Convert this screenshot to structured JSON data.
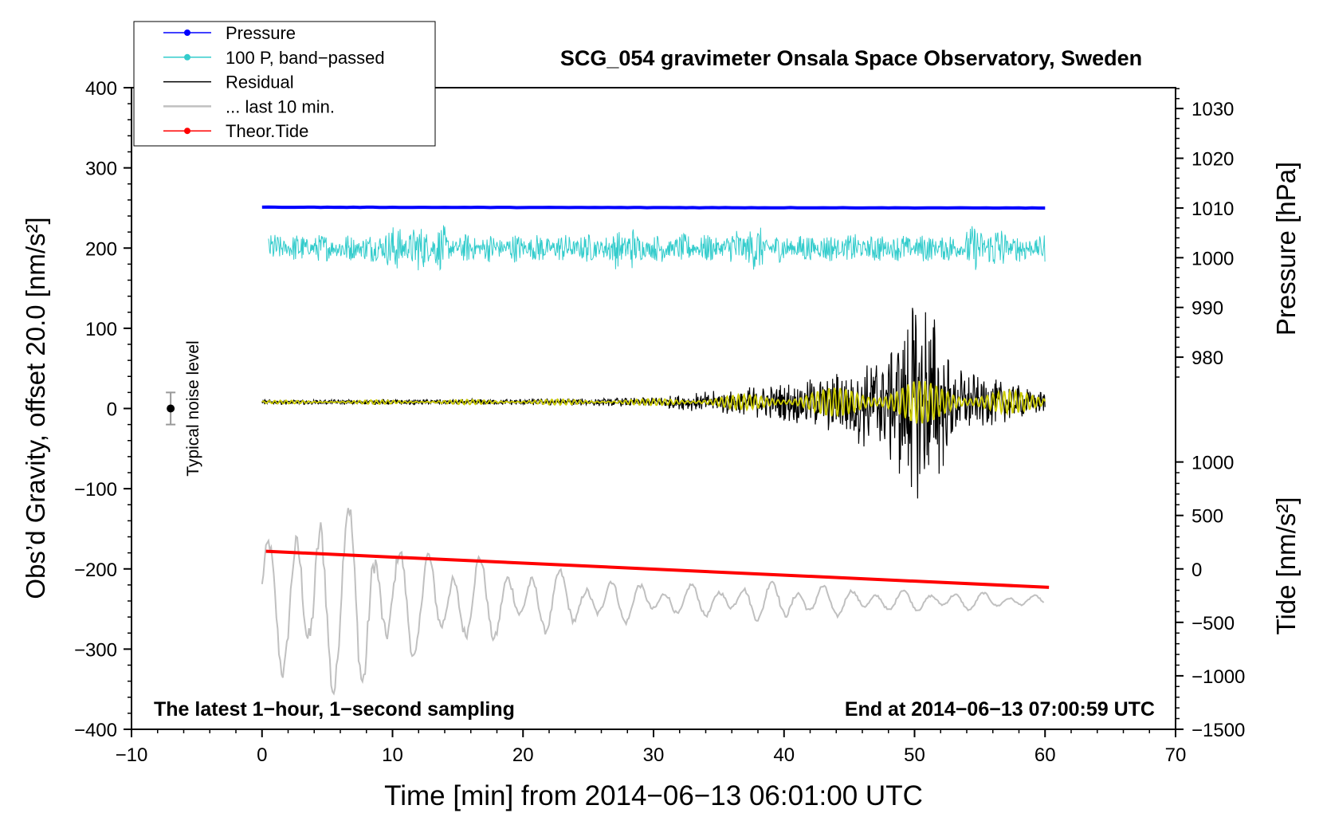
{
  "chart_data": {
    "type": "line",
    "title": "SCG_054 gravimeter Onsala Space Observatory, Sweden",
    "xlabel": "Time [min] from 2014−06−13 06:01:00 UTC",
    "ylabel_left": "Obs’d Gravity, offset 20.0 [nm/s²]",
    "ylabel_pressure": "Pressure [hPa]",
    "ylabel_tide": "Tide [nm/s²]",
    "xlim": [
      -10,
      70
    ],
    "ylim": [
      -400,
      400
    ],
    "x_ticks": [
      {
        "value": -10,
        "label": "−10"
      },
      {
        "value": 0,
        "label": "0"
      },
      {
        "value": 10,
        "label": "10"
      },
      {
        "value": 20,
        "label": "20"
      },
      {
        "value": 30,
        "label": "30"
      },
      {
        "value": 40,
        "label": "40"
      },
      {
        "value": 50,
        "label": "50"
      },
      {
        "value": 60,
        "label": "60"
      },
      {
        "value": 70,
        "label": "70"
      }
    ],
    "y_ticks": [
      {
        "value": 400,
        "label": "400"
      },
      {
        "value": 300,
        "label": "300"
      },
      {
        "value": 200,
        "label": "200"
      },
      {
        "value": 100,
        "label": "100"
      },
      {
        "value": 0,
        "label": "0"
      },
      {
        "value": -100,
        "label": "−100"
      },
      {
        "value": -200,
        "label": "−200"
      },
      {
        "value": -300,
        "label": "−300"
      },
      {
        "value": -400,
        "label": "−400"
      }
    ],
    "pressure_axis": {
      "ref_value": 1010,
      "ref_y": 250,
      "scale_per_hpa": 6.2,
      "ticks": [
        {
          "value": 980,
          "label": "980"
        },
        {
          "value": 990,
          "label": "990"
        },
        {
          "value": 1000,
          "label": "1000"
        },
        {
          "value": 1010,
          "label": "1010"
        },
        {
          "value": 1020,
          "label": "1020"
        },
        {
          "value": 1030,
          "label": "1030"
        }
      ]
    },
    "tide_axis": {
      "ref_value": 0,
      "ref_y": -200,
      "scale_per_unit": 0.1333,
      "ticks": [
        {
          "value": 1000,
          "label": "1000"
        },
        {
          "value": 500,
          "label": "500"
        },
        {
          "value": 0,
          "label": "0"
        },
        {
          "value": -500,
          "label": "−500"
        },
        {
          "value": -1000,
          "label": "−1000"
        },
        {
          "value": -1500,
          "label": "−1500"
        }
      ]
    },
    "legend": {
      "position": "top-left",
      "entries": [
        {
          "label": "Pressure",
          "color": "#0000ff",
          "marker": true
        },
        {
          "label": "100 P, band−passed",
          "color": "#33cccc",
          "marker": true
        },
        {
          "label": "Residual",
          "color": "#000000",
          "marker": false
        },
        {
          "label": "... last 10 min.",
          "color": "#c0c0c0",
          "marker": false
        },
        {
          "label": "Theor.Tide",
          "color": "#ff0000",
          "marker": true
        }
      ]
    },
    "series": [
      {
        "name": "Pressure",
        "color": "#0000ff",
        "kind": "line",
        "y_start": 251,
        "y_end": 250,
        "x_start": 0,
        "x_end": 60
      },
      {
        "name": "100 P, band-passed",
        "color": "#33cccc",
        "kind": "noise",
        "center": 200,
        "amplitude": 18,
        "x_start": 0.5,
        "x_end": 60
      },
      {
        "name": "Residual",
        "color": "#000000",
        "kind": "envelope",
        "center": 8,
        "envelope": [
          [
            0,
            3
          ],
          [
            20,
            4
          ],
          [
            30,
            6
          ],
          [
            35,
            15
          ],
          [
            40,
            25
          ],
          [
            44,
            40
          ],
          [
            48,
            80
          ],
          [
            50,
            150
          ],
          [
            51.5,
            120
          ],
          [
            53,
            45
          ],
          [
            57,
            25
          ],
          [
            60,
            15
          ]
        ]
      },
      {
        "name": "Residual (filtered)",
        "color": "#cccc00",
        "kind": "envelope",
        "center": 8,
        "envelope": [
          [
            0,
            2
          ],
          [
            30,
            4
          ],
          [
            40,
            12
          ],
          [
            45,
            20
          ],
          [
            50,
            28
          ],
          [
            55,
            18
          ],
          [
            60,
            10
          ]
        ]
      },
      {
        "name": "... last 10 min.",
        "color": "#c0c0c0",
        "kind": "oscillation",
        "center": -240,
        "envelope": [
          [
            0,
            60
          ],
          [
            3,
            110
          ],
          [
            4.5,
            140
          ],
          [
            6,
            100
          ],
          [
            8,
            130
          ],
          [
            10,
            70
          ],
          [
            15,
            55
          ],
          [
            20,
            40
          ],
          [
            25,
            30
          ],
          [
            30,
            20
          ],
          [
            35,
            18
          ],
          [
            40,
            25
          ],
          [
            45,
            15
          ],
          [
            50,
            12
          ],
          [
            55,
            10
          ],
          [
            60,
            6
          ]
        ],
        "x_start": 0,
        "x_end": 60
      },
      {
        "name": "Theor.Tide",
        "color": "#ff0000",
        "kind": "line",
        "y_start": -178,
        "y_end": -223,
        "x_start": 0.3,
        "x_end": 60.3
      }
    ],
    "noise_bar": {
      "label": "Typical noise level",
      "x": -7,
      "y": 0,
      "half_range": 20
    },
    "annotations": [
      {
        "text": "The latest 1−hour, 1−second sampling",
        "position": "bottom-left"
      },
      {
        "text": "End at 2014−06−13 07:00:59 UTC",
        "position": "bottom-right"
      }
    ]
  }
}
